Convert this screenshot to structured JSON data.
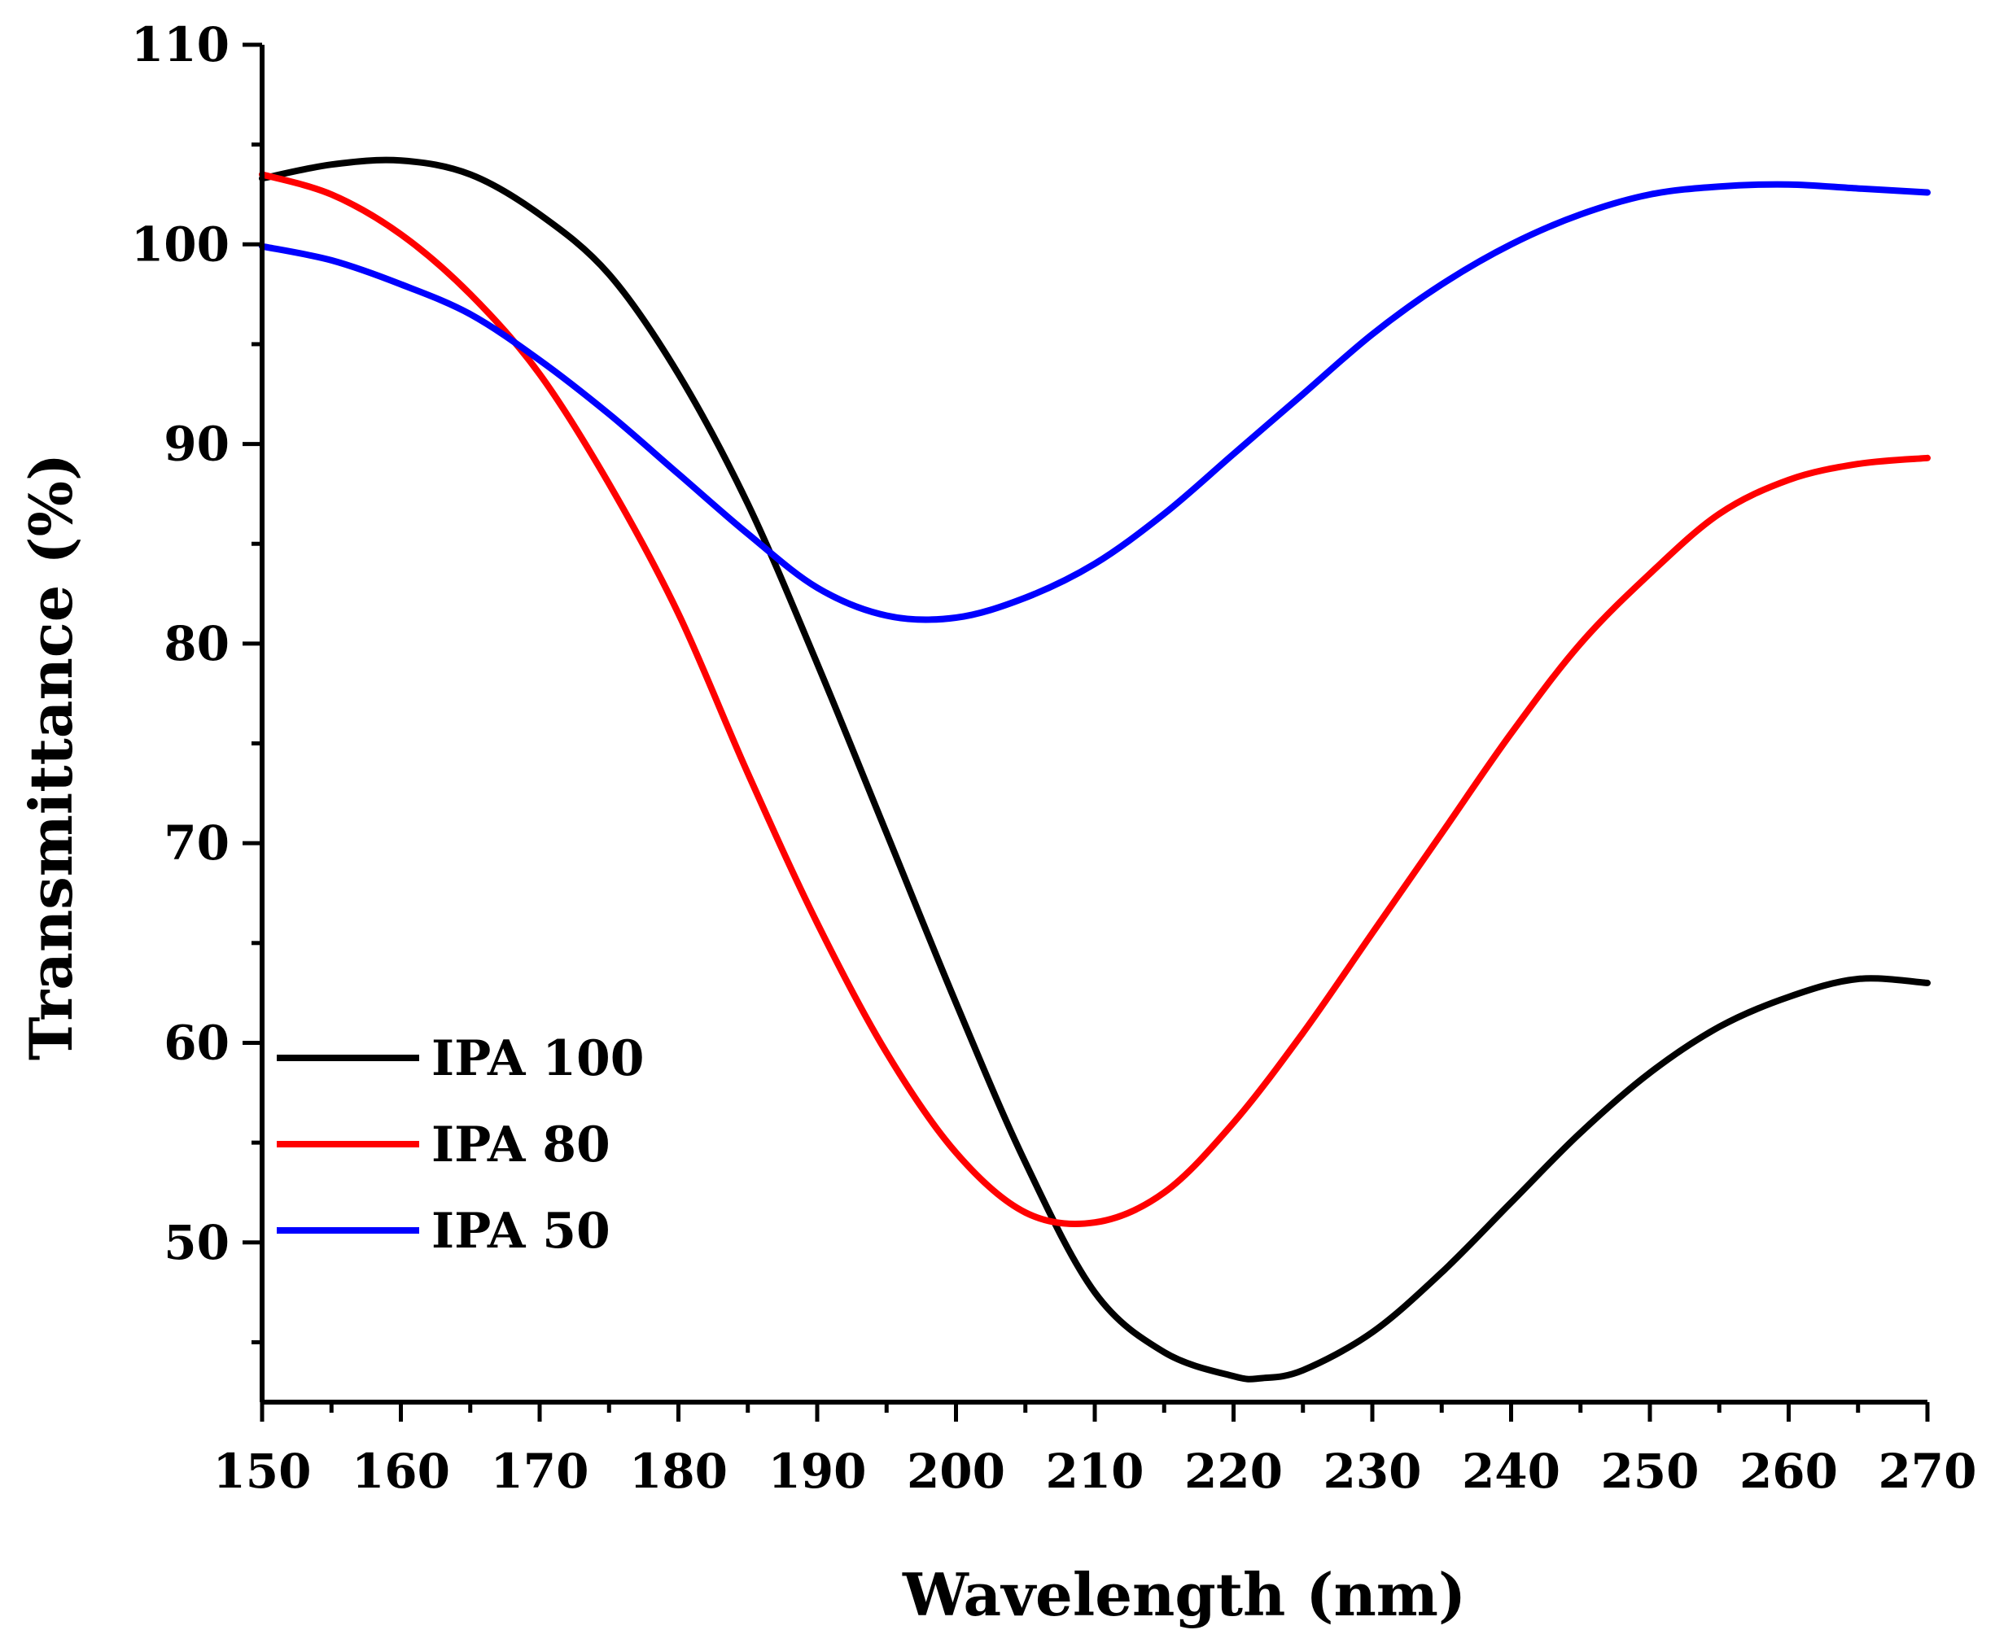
{
  "chart_data": {
    "type": "line",
    "title": "",
    "xlabel": "Wavelength (nm)",
    "ylabel": "Transmittance (%)",
    "xlim": [
      150,
      270
    ],
    "ylim": [
      42,
      110
    ],
    "x_ticks": [
      "150",
      "160",
      "170",
      "180",
      "190",
      "200",
      "210",
      "220",
      "230",
      "240",
      "250",
      "260",
      "270"
    ],
    "y_ticks": [
      "50",
      "60",
      "70",
      "80",
      "90",
      "100",
      "110"
    ],
    "legend_position": "bottom-left",
    "grid": false,
    "series": [
      {
        "name": "IPA 100",
        "color": "#000000",
        "x": [
          150,
          155,
          160,
          165,
          170,
          175,
          180,
          185,
          190,
          195,
          200,
          205,
          210,
          215,
          220,
          222,
          225,
          230,
          235,
          240,
          245,
          250,
          255,
          260,
          265,
          270
        ],
        "y": [
          103.3,
          104.0,
          104.2,
          103.5,
          101.5,
          98.5,
          93.5,
          87.0,
          79.0,
          70.5,
          62.0,
          54.0,
          47.5,
          44.5,
          43.3,
          43.2,
          43.6,
          45.5,
          48.5,
          52.0,
          55.5,
          58.5,
          60.8,
          62.3,
          63.2,
          63.0
        ]
      },
      {
        "name": "IPA 80",
        "color": "#ff0000",
        "x": [
          150,
          155,
          160,
          165,
          170,
          175,
          180,
          185,
          190,
          195,
          200,
          205,
          210,
          215,
          220,
          225,
          230,
          235,
          240,
          245,
          250,
          255,
          260,
          265,
          270
        ],
        "y": [
          103.5,
          102.5,
          100.5,
          97.5,
          93.5,
          88.0,
          81.5,
          73.5,
          66.0,
          59.5,
          54.5,
          51.5,
          51.0,
          52.5,
          56.0,
          60.5,
          65.5,
          70.5,
          75.5,
          80.0,
          83.5,
          86.5,
          88.2,
          89.0,
          89.3
        ]
      },
      {
        "name": "IPA 50",
        "color": "#0000ff",
        "x": [
          150,
          155,
          160,
          165,
          170,
          175,
          180,
          185,
          190,
          195,
          200,
          205,
          210,
          215,
          220,
          225,
          230,
          235,
          240,
          245,
          250,
          255,
          260,
          265,
          270
        ],
        "y": [
          99.9,
          99.2,
          98.0,
          96.5,
          94.2,
          91.5,
          88.5,
          85.5,
          82.8,
          81.4,
          81.3,
          82.3,
          84.0,
          86.5,
          89.5,
          92.5,
          95.5,
          98.0,
          100.0,
          101.5,
          102.5,
          102.9,
          103.0,
          102.8,
          102.6
        ]
      }
    ]
  }
}
